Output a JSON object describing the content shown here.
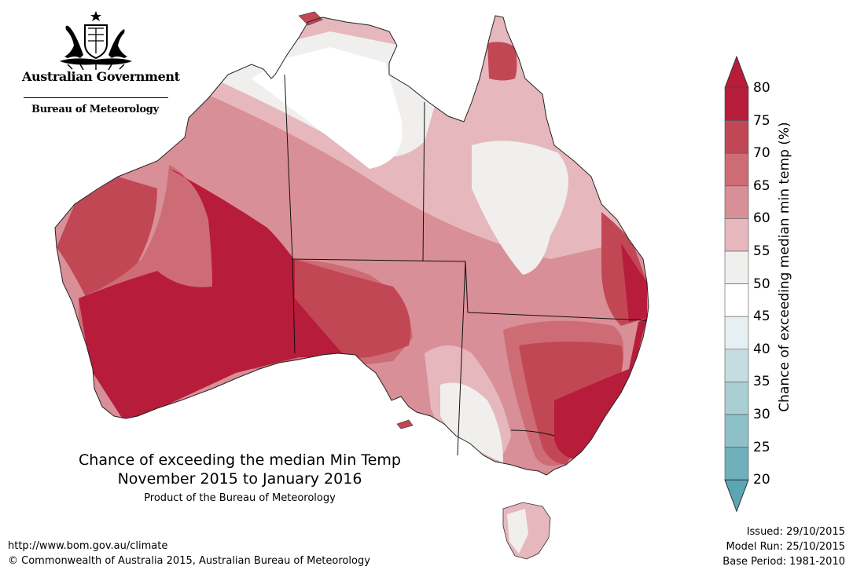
{
  "branding": {
    "government": "Australian Government",
    "bureau": "Bureau of Meteorology",
    "crest_icon": "coat-of-arms-icon"
  },
  "map": {
    "title_line1": "Chance of exceeding the median Min Temp",
    "title_line2": "November 2015 to January 2016",
    "product": "Product of the Bureau of Meteorology"
  },
  "legend": {
    "title": "Chance of exceeding median min temp (%)",
    "ticks": [
      "80",
      "75",
      "70",
      "65",
      "60",
      "55",
      "50",
      "45",
      "40",
      "35",
      "30",
      "25",
      "20"
    ],
    "colors": [
      "#b71c3a",
      "#c24755",
      "#cd6c75",
      "#d98f97",
      "#e6b8bd",
      "#f0efed",
      "#ffffff",
      "#e6eff1",
      "#c5dde1",
      "#a9ced4",
      "#8ec0c8",
      "#6fb0bb"
    ]
  },
  "footer": {
    "url": "http://www.bom.gov.au/climate",
    "copyright": "© Commonwealth of Australia 2015, Australian Bureau of Meteorology",
    "issued": "Issued: 29/10/2015",
    "model_run": "Model Run: 25/10/2015",
    "base_period": "Base Period: 1981-2010"
  }
}
